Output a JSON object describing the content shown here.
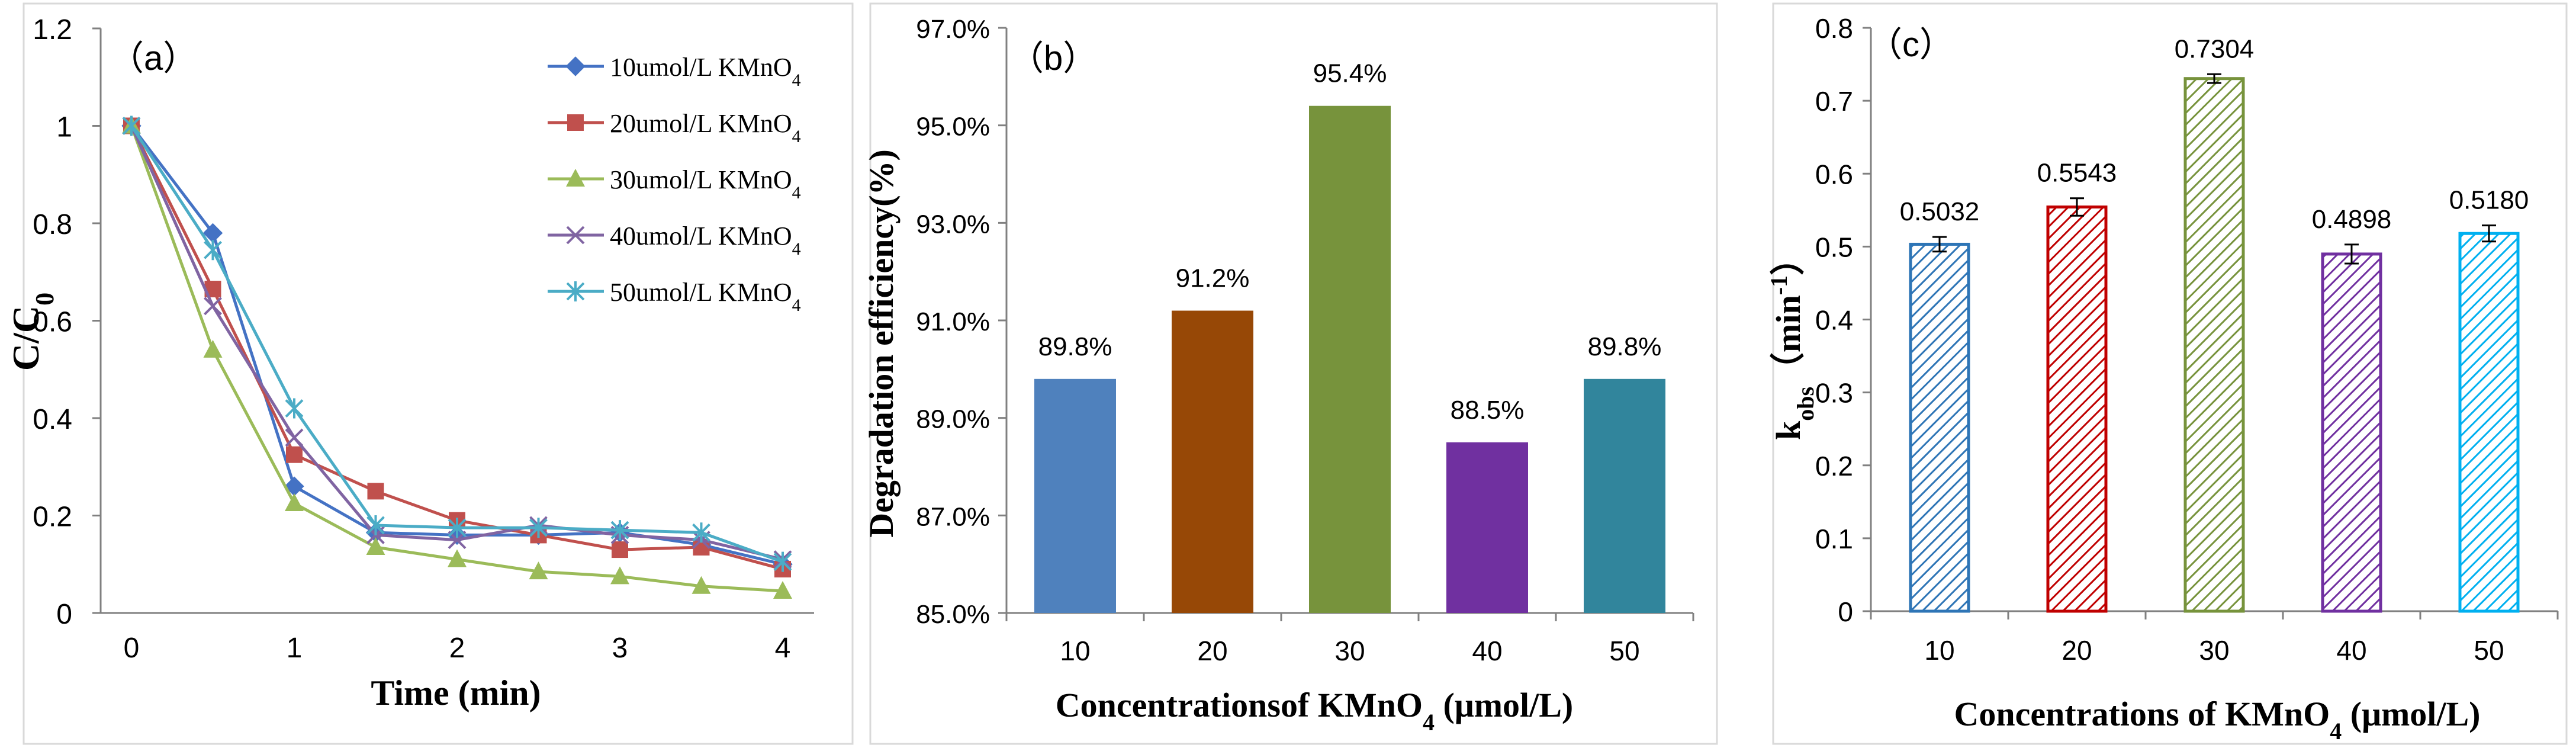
{
  "chart_data": [
    {
      "type": "line",
      "panel_label": "（a）",
      "title": "",
      "xlabel": "Time (min)",
      "ylabel_main": "C/C",
      "ylabel_sub": "0",
      "xlim": [
        0,
        4
      ],
      "ylim": [
        0,
        1.2
      ],
      "xticks": [
        "0",
        "1",
        "2",
        "3",
        "4"
      ],
      "yticks": [
        "0",
        "0.2",
        "0.4",
        "0.6",
        "0.8",
        "1",
        "1.2"
      ],
      "x": [
        0,
        0.5,
        1,
        1.5,
        2,
        2.5,
        3,
        3.5,
        4
      ],
      "series": [
        {
          "name": "10umol/L KMnO4",
          "label_main": "10umol/L KMnO",
          "label_sub": "4",
          "color": "#4472C4",
          "marker": "diamond",
          "values": [
            1.0,
            0.78,
            0.26,
            0.165,
            0.16,
            0.16,
            0.165,
            0.14,
            0.1
          ]
        },
        {
          "name": "20umol/L KMnO4",
          "label_main": "20umol/L KMnO",
          "label_sub": "4",
          "color": "#C0504D",
          "marker": "square",
          "values": [
            1.0,
            0.665,
            0.325,
            0.25,
            0.19,
            0.16,
            0.13,
            0.135,
            0.09
          ]
        },
        {
          "name": "30umol/L KMnO4",
          "label_main": "30umol/L KMnO",
          "label_sub": "4",
          "color": "#9BBB59",
          "marker": "triangle",
          "values": [
            1.0,
            0.54,
            0.225,
            0.135,
            0.11,
            0.085,
            0.075,
            0.055,
            0.045
          ]
        },
        {
          "name": "40umol/L KMnO4",
          "label_main": "40umol/L KMnO",
          "label_sub": "4",
          "color": "#8064A2",
          "marker": "x",
          "values": [
            1.0,
            0.63,
            0.36,
            0.16,
            0.15,
            0.18,
            0.16,
            0.15,
            0.11
          ]
        },
        {
          "name": "50umol/L KMnO4",
          "label_main": "50umol/L KMnO",
          "label_sub": "4",
          "color": "#4BACC6",
          "marker": "star",
          "values": [
            1.0,
            0.745,
            0.42,
            0.18,
            0.175,
            0.175,
            0.17,
            0.165,
            0.105
          ]
        }
      ]
    },
    {
      "type": "bar",
      "panel_label": "（b）",
      "title": "",
      "xlabel_main": "Concentrationsof KMnO",
      "xlabel_sub": "4",
      "xlabel_tail": " (μmol/L)",
      "ylabel": "Degradation efficiency(%)",
      "ylim": [
        85.0,
        97.0
      ],
      "yticks": [
        "85.0%",
        "87.0%",
        "89.0%",
        "91.0%",
        "93.0%",
        "95.0%",
        "97.0%"
      ],
      "categories": [
        "10",
        "20",
        "30",
        "40",
        "50"
      ],
      "values": [
        89.8,
        91.2,
        95.4,
        88.5,
        89.8
      ],
      "data_labels": [
        "89.8%",
        "91.2%",
        "95.4%",
        "88.5%",
        "89.8%"
      ],
      "colors": [
        "#4F81BD",
        "#974806",
        "#77933C",
        "#7030A0",
        "#31859C"
      ]
    },
    {
      "type": "bar",
      "panel_label": "（c）",
      "title": "",
      "xlabel_main": "Concentrations of KMnO",
      "xlabel_sub": "4",
      "xlabel_tail": " (μmol/L)",
      "ylabel_main": "k",
      "ylabel_sub": "obs",
      "ylabel_tail": "（min",
      "ylabel_sup": "-1",
      "ylabel_end": "）",
      "ylim": [
        0,
        0.8
      ],
      "yticks": [
        "0",
        "0.1",
        "0.2",
        "0.3",
        "0.4",
        "0.5",
        "0.6",
        "0.7",
        "0.8"
      ],
      "categories": [
        "10",
        "20",
        "30",
        "40",
        "50"
      ],
      "values": [
        0.5032,
        0.5543,
        0.7304,
        0.4898,
        0.518
      ],
      "errors": [
        0.01,
        0.012,
        0.006,
        0.013,
        0.011
      ],
      "data_labels": [
        "0.5032",
        "0.5543",
        "0.7304",
        "0.4898",
        "0.5180"
      ],
      "colors": [
        "#2E75B6",
        "#C00000",
        "#77933C",
        "#7030A0",
        "#00B0F0"
      ],
      "pattern": "diagonal-hatch"
    }
  ]
}
